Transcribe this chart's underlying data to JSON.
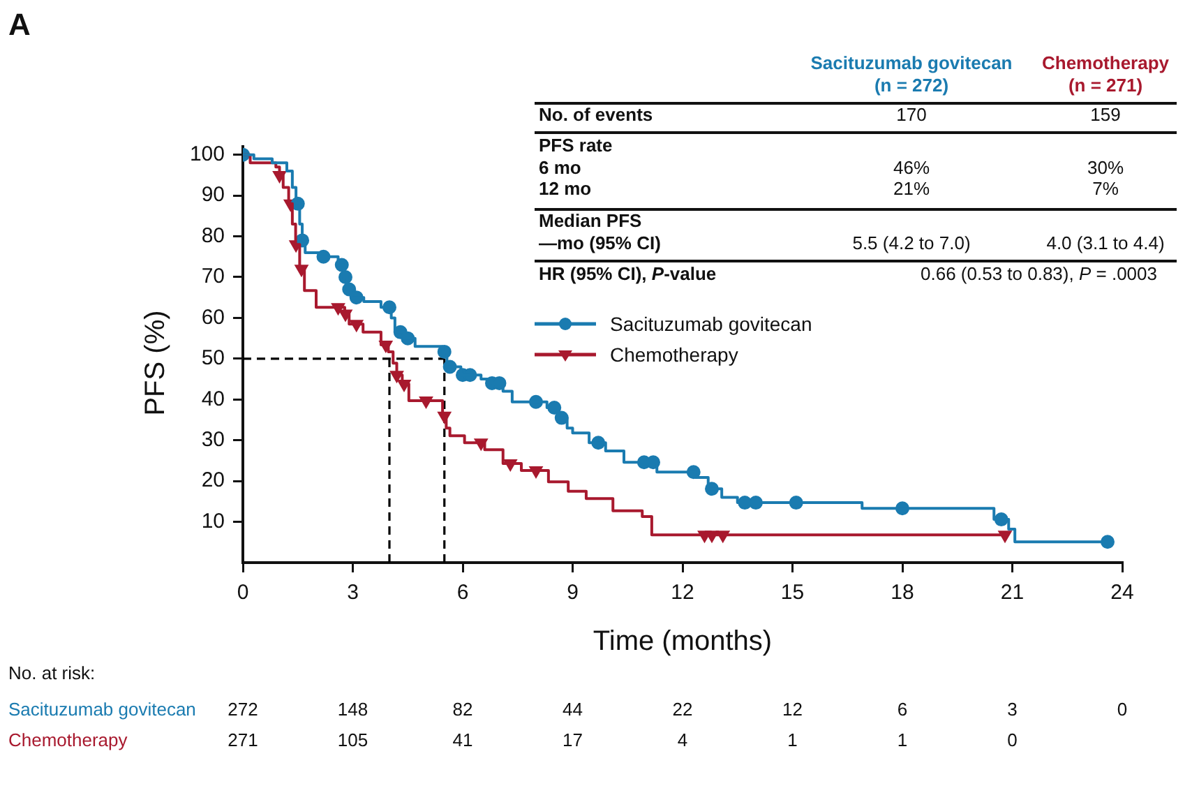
{
  "chart_data": {
    "type": "step",
    "title": "A",
    "xlabel": "Time (months)",
    "ylabel": "PFS (%)",
    "xlim": [
      0,
      24
    ],
    "xticks": [
      0,
      3,
      6,
      9,
      12,
      15,
      18,
      21,
      24
    ],
    "ylim": [
      0,
      102
    ],
    "yticks": [
      10,
      20,
      30,
      40,
      50,
      60,
      70,
      80,
      90,
      100
    ],
    "grid": false,
    "legend": "right",
    "line_style": "solid",
    "series": [
      {
        "name": "Sacituzumab govitecan",
        "color": "#1a7bb0",
        "x": [
          0,
          0.3,
          0.8,
          1.2,
          1.35,
          1.45,
          1.55,
          1.62,
          1.7,
          2.1,
          2.6,
          2.75,
          2.85,
          2.95,
          3.3,
          3.77,
          4.05,
          4.15,
          4.4,
          4.7,
          5.45,
          5.57,
          5.95,
          6.5,
          6.8,
          7.1,
          7.35,
          8.3,
          8.6,
          8.85,
          9.0,
          9.45,
          9.9,
          10.4,
          11.3,
          12.35,
          12.7,
          13.07,
          13.5,
          16.9,
          20.5,
          20.9,
          21.07,
          23.6
        ],
        "values": [
          100,
          99,
          98,
          96,
          92,
          88,
          83,
          79,
          76,
          75,
          73,
          70,
          67,
          65,
          64,
          62.6,
          60,
          56.5,
          55,
          53,
          51.7,
          48,
          46,
          45,
          44,
          42,
          39.4,
          38,
          35.5,
          33,
          31.8,
          29.4,
          27.4,
          24.6,
          22.2,
          20.9,
          18.1,
          16,
          14.7,
          13.3,
          10.6,
          8.2,
          5.1,
          5.1
        ]
      },
      {
        "name": "Chemotherapy",
        "color": "#a8192e",
        "x": [
          0,
          0.2,
          0.9,
          1.0,
          1.1,
          1.25,
          1.35,
          1.44,
          1.55,
          1.68,
          2.0,
          2.78,
          2.9,
          3.28,
          3.77,
          3.97,
          4.1,
          4.2,
          4.35,
          4.53,
          5.45,
          5.55,
          5.65,
          6.05,
          6.6,
          7.1,
          7.6,
          8.34,
          8.88,
          9.37,
          10.1,
          10.9,
          11.16,
          20.8
        ],
        "values": [
          100,
          98,
          97,
          95,
          92,
          88,
          83,
          78,
          72,
          66.7,
          62.6,
          61,
          58.5,
          56.5,
          53.4,
          51.7,
          48.9,
          46,
          43.8,
          39.7,
          36,
          33,
          31.1,
          29.4,
          27.7,
          24.3,
          22.6,
          19.8,
          17.5,
          15.7,
          12.7,
          11.3,
          6.8,
          6.8
        ]
      },
      {
        "color": "#1a7bb0",
        "type": "scatter",
        "marker": "circle",
        "x": [
          0,
          1.5,
          1.62,
          2.2,
          2.7,
          2.8,
          2.9,
          3.1,
          4.0,
          4.3,
          4.5,
          5.5,
          5.65,
          6.0,
          6.2,
          6.8,
          7.0,
          8.0,
          8.5,
          8.7,
          9.7,
          10.95,
          11.2,
          12.3,
          12.8,
          13.7,
          14.0,
          15.1,
          18.0,
          20.7,
          23.6
        ],
        "values": [
          100,
          88,
          79,
          75,
          73,
          70,
          67,
          65,
          62.6,
          56.5,
          55,
          51.7,
          48,
          46,
          46,
          44,
          44,
          39.4,
          38,
          35.5,
          29.4,
          24.6,
          24.6,
          22.2,
          18.1,
          14.7,
          14.7,
          14.7,
          13.3,
          10.6,
          5.1
        ]
      },
      {
        "color": "#a8192e",
        "type": "scatter",
        "marker": "triangle",
        "x": [
          1.0,
          1.3,
          1.45,
          1.6,
          2.6,
          2.8,
          3.1,
          3.9,
          4.2,
          4.4,
          5.0,
          5.5,
          6.5,
          7.3,
          8.0,
          12.6,
          12.8,
          13.1,
          20.8
        ],
        "values": [
          95,
          88,
          78,
          72,
          62.6,
          61,
          58.5,
          53.4,
          46,
          43.8,
          39.7,
          36,
          29.4,
          24.3,
          22.6,
          6.8,
          6.8,
          6.8,
          6.8
        ]
      }
    ],
    "ref_lines": [
      {
        "axis": "y",
        "value": 50,
        "color": "#000000",
        "line_style": "dashed"
      },
      {
        "axis": "x",
        "value": 4.0,
        "color": "#000000",
        "line_style": "dashed"
      },
      {
        "axis": "x",
        "value": 5.5,
        "color": "#000000",
        "line_style": "dashed"
      }
    ],
    "annotations": [
      "(n = 272)",
      "(n = 271)",
      "No. of events",
      "170",
      "159",
      "PFS rate",
      "6 mo",
      "46%",
      "30%",
      "12 mo",
      "21%",
      "7%",
      "Median PFS",
      "—mo (95% CI)",
      "5.5 (4.2 to 7.0)",
      "4.0 (3.1 to 4.4)",
      "HR (95% CI), P-value",
      "0.66 (0.53 to 0.83), P = .0003",
      "No. at risk:",
      "272",
      "148",
      "82",
      "44",
      "22",
      "12",
      "6",
      "3",
      "0",
      "271",
      "105",
      "41",
      "17",
      "4",
      "1",
      "1",
      "0"
    ]
  }
}
